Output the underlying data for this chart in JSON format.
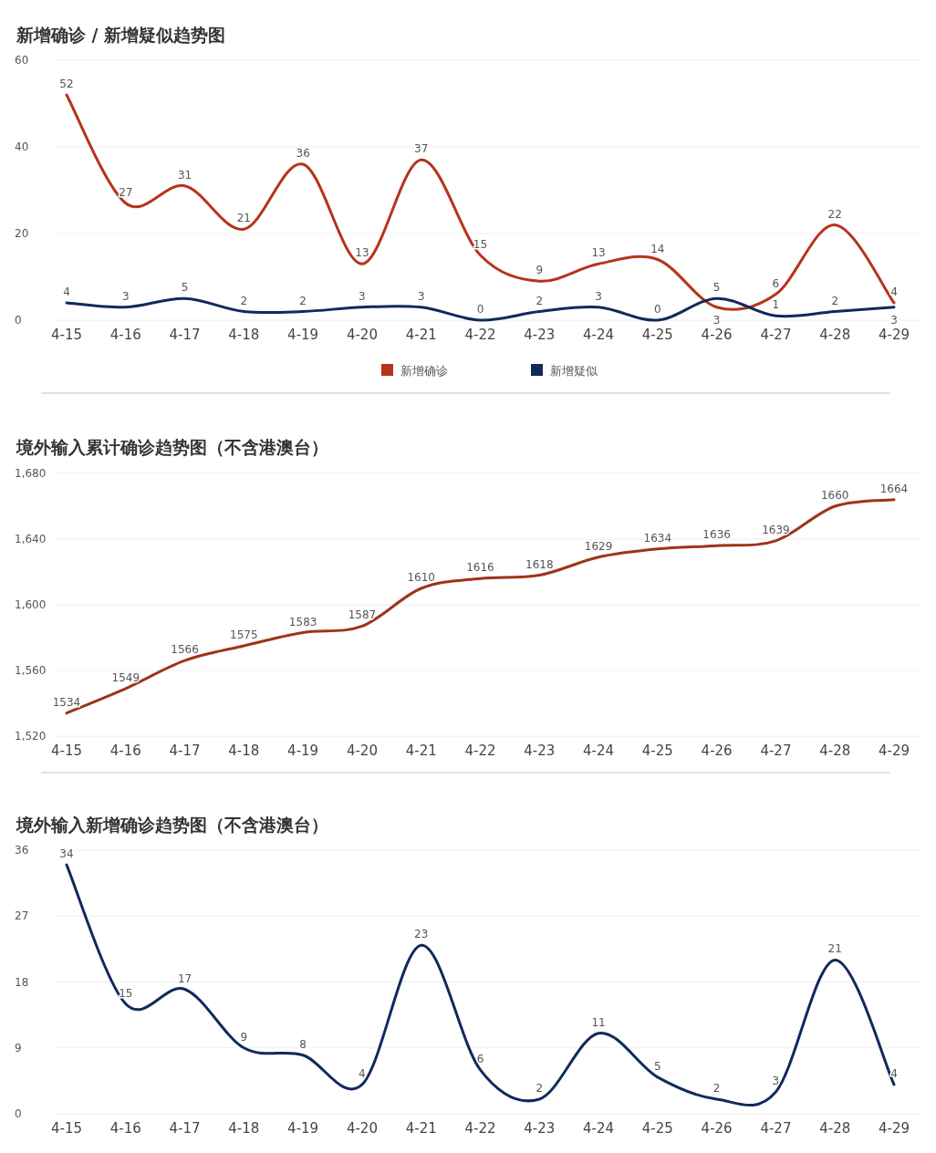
{
  "chart_data": [
    {
      "type": "line",
      "title": "新增确诊 / 新增疑似趋势图",
      "categories": [
        "4-15",
        "4-16",
        "4-17",
        "4-18",
        "4-19",
        "4-20",
        "4-21",
        "4-22",
        "4-23",
        "4-24",
        "4-25",
        "4-26",
        "4-27",
        "4-28",
        "4-29"
      ],
      "series": [
        {
          "name": "新增确诊",
          "color": "#b5341b",
          "values": [
            52,
            27,
            31,
            21,
            36,
            13,
            37,
            15,
            9,
            13,
            14,
            3,
            6,
            22,
            4
          ]
        },
        {
          "name": "新增疑似",
          "color": "#102a5c",
          "values": [
            4,
            3,
            5,
            2,
            2,
            3,
            3,
            0,
            2,
            3,
            0,
            5,
            1,
            2,
            3
          ]
        }
      ],
      "ylim": [
        0,
        60
      ],
      "yticks": [
        0,
        20,
        40,
        60
      ],
      "grid": "y",
      "legend": "bottom",
      "data_labels": true
    },
    {
      "type": "line",
      "title": "境外输入累计确诊趋势图（不含港澳台）",
      "categories": [
        "4-15",
        "4-16",
        "4-17",
        "4-18",
        "4-19",
        "4-20",
        "4-21",
        "4-22",
        "4-23",
        "4-24",
        "4-25",
        "4-26",
        "4-27",
        "4-28",
        "4-29"
      ],
      "values": [
        1534,
        1549,
        1566,
        1575,
        1583,
        1587,
        1610,
        1616,
        1618,
        1629,
        1634,
        1636,
        1639,
        1660,
        1664
      ],
      "color": "#9e3418",
      "ylim": [
        1520,
        1680
      ],
      "yticks": [
        {
          "value": 1520,
          "label": "1,520"
        },
        {
          "value": 1560,
          "label": "1,560"
        },
        {
          "value": 1600,
          "label": "1,600"
        },
        {
          "value": 1640,
          "label": "1,640"
        },
        {
          "value": 1680,
          "label": "1,680"
        }
      ],
      "grid": "y",
      "data_labels": true
    },
    {
      "type": "line",
      "title": "境外输入新增确诊趋势图（不含港澳台）",
      "categories": [
        "4-15",
        "4-16",
        "4-17",
        "4-18",
        "4-19",
        "4-20",
        "4-21",
        "4-22",
        "4-23",
        "4-24",
        "4-25",
        "4-26",
        "4-27",
        "4-28",
        "4-29"
      ],
      "values": [
        34,
        15,
        17,
        9,
        8,
        4,
        23,
        6,
        2,
        11,
        5,
        2,
        3,
        21,
        4
      ],
      "color": "#102a5c",
      "ylim": [
        0,
        36
      ],
      "yticks": [
        0,
        9,
        18,
        27,
        36
      ],
      "grid": "y",
      "data_labels": true
    }
  ]
}
